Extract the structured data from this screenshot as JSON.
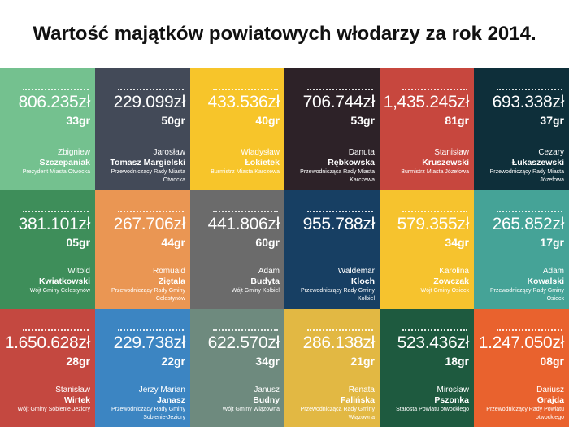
{
  "title": "Wartość majątków powiatowych włodarzy za rok 2014.",
  "tiles": [
    {
      "amount": "806.235zł",
      "grosze": "33gr",
      "first": "Zbigniew",
      "last": "Szczepaniak",
      "role": "Prezydent Miasta Otwocka",
      "color": "#74c18f"
    },
    {
      "amount": "229.099zł",
      "grosze": "50gr",
      "first": "Jarosław",
      "last": "Tomasz Margielski",
      "role": "Przewodniczący Rady Miasta Otwocka",
      "color": "#434a58"
    },
    {
      "amount": "433.536zł",
      "grosze": "40gr",
      "first": "Władysław",
      "last": "Łokietek",
      "role": "Burmistrz Miasta Karczewa",
      "color": "#f7c52a"
    },
    {
      "amount": "706.744zł",
      "grosze": "53gr",
      "first": "Danuta",
      "last": "Rębkowska",
      "role": "Przewodnicząca Rady Miasta Karczewa",
      "color": "#2d2228"
    },
    {
      "amount": "1,435.245zł",
      "grosze": "81gr",
      "first": "Stanisław",
      "last": "Kruszewski",
      "role": "Burmistrz Miasta Józefowa",
      "color": "#c7473e"
    },
    {
      "amount": "693.338zł",
      "grosze": "37gr",
      "first": "Cezary",
      "last": "Łukaszewski",
      "role": "Przewodniczący Rady Miasta Józefowa",
      "color": "#0e2f3a"
    },
    {
      "amount": "381.101zł",
      "grosze": "05gr",
      "first": "Witold",
      "last": "Kwiatkowski",
      "role": "Wójt Gminy Celestynów",
      "color": "#3e8e5a"
    },
    {
      "amount": "267.706zł",
      "grosze": "44gr",
      "first": "Romuald",
      "last": "Ziętala",
      "role": "Przewodniczący Rady Gminy Celestynów",
      "color": "#ea9653"
    },
    {
      "amount": "441.806zł",
      "grosze": "60gr",
      "first": "Adam",
      "last": "Budyta",
      "role": "Wójt Gminy Kołbiel",
      "color": "#6b6b6b"
    },
    {
      "amount": "955.788zł",
      "grosze": "",
      "first": "Waldemar",
      "last": "Kloch",
      "role": "Przewodniczący Rady Gminy Kołbiel",
      "color": "#173f63"
    },
    {
      "amount": "579.355zł",
      "grosze": "34gr",
      "first": "Karolina",
      "last": "Zowczak",
      "role": "Wójt Gminy Osieck",
      "color": "#f6c32e"
    },
    {
      "amount": "265.852zł",
      "grosze": "17gr",
      "first": "Adam",
      "last": "Kowalski",
      "role": "Przewodniczący Rady Gminy Osieck",
      "color": "#45a397"
    },
    {
      "amount": "1.650.628zł",
      "grosze": "28gr",
      "first": "Stanisław",
      "last": "Wirtek",
      "role": "Wójt Gminy Sobienie Jeziory",
      "color": "#c44840"
    },
    {
      "amount": "229.738zł",
      "grosze": "22gr",
      "first": "Jerzy Marian",
      "last": "Janasz",
      "role": "Przewodniczący Rady Gminy Sobienie-Jeziory",
      "color": "#3c85c2"
    },
    {
      "amount": "622.570zł",
      "grosze": "34gr",
      "first": "Janusz",
      "last": "Budny",
      "role": "Wójt Gminy Wiązowna",
      "color": "#6e8a7e"
    },
    {
      "amount": "286.138zł",
      "grosze": "21gr",
      "first": "Renata",
      "last": "Falińska",
      "role": "Przewodnicząca Rady Gminy Wiązowna",
      "color": "#e2b843"
    },
    {
      "amount": "523.436zł",
      "grosze": "18gr",
      "first": "Mirosław",
      "last": "Pszonka",
      "role": "Starosta Powiatu otwockiego",
      "color": "#1e5a3f"
    },
    {
      "amount": "1.247.050zł",
      "grosze": "08gr",
      "first": "Dariusz",
      "last": "Grajda",
      "role": "Przewodniczący Rady Powiatu otwockiego",
      "color": "#e9622e"
    }
  ]
}
